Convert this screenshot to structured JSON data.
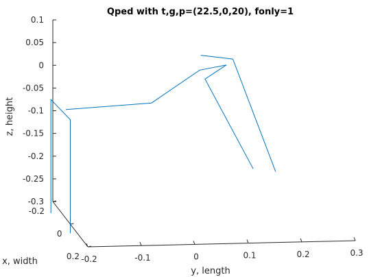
{
  "chart_data": {
    "type": "line",
    "title": "Qped with t,g,p=(22.5,0,20), fonly=1",
    "xlabel": "y, length",
    "ylabel": "x, width",
    "zlabel": "z, height",
    "y_length_ticks": [
      "-0.2",
      "-0.1",
      "0",
      "0.1",
      "0.2",
      "0.3"
    ],
    "x_width_ticks": [
      "-0.2",
      "0",
      "0.2"
    ],
    "z_height_ticks": [
      "0.1",
      "0.05",
      "0",
      "-0.05",
      "-0.1",
      "-0.15",
      "-0.2",
      "-0.25",
      "-0.3"
    ],
    "ylim_length": [
      -0.2,
      0.3
    ],
    "xlim_width": [
      -0.2,
      0.2
    ],
    "zlim_height": [
      -0.3,
      0.1
    ],
    "grid": false,
    "series": [
      {
        "points": [
          {
            "length": -0.22,
            "width": -0.1,
            "height": -0.3
          },
          {
            "length": -0.22,
            "width": -0.1,
            "height": -0.05
          },
          {
            "length": -0.2,
            "width": 0.0,
            "height": -0.07
          },
          {
            "length": -0.2,
            "width": 0.0,
            "height": -0.32
          }
        ]
      },
      {
        "points": [
          {
            "length": -0.2,
            "width": -0.05,
            "height": -0.06
          },
          {
            "length": -0.04,
            "width": -0.05,
            "height": -0.05
          },
          {
            "length": 0.05,
            "width": -0.05,
            "height": 0.02
          },
          {
            "length": 0.1,
            "width": -0.05,
            "height": 0.03
          }
        ]
      },
      {
        "points": [
          {
            "length": 0.06,
            "width": -0.1,
            "height": 0.04
          },
          {
            "length": 0.12,
            "width": -0.1,
            "height": 0.03
          },
          {
            "length": 0.2,
            "width": -0.1,
            "height": -0.22
          }
        ]
      },
      {
        "points": [
          {
            "length": 0.1,
            "width": -0.05,
            "height": 0.03
          },
          {
            "length": 0.06,
            "width": -0.05,
            "height": 0.0
          },
          {
            "length": 0.15,
            "width": -0.05,
            "height": -0.2
          }
        ]
      }
    ]
  }
}
